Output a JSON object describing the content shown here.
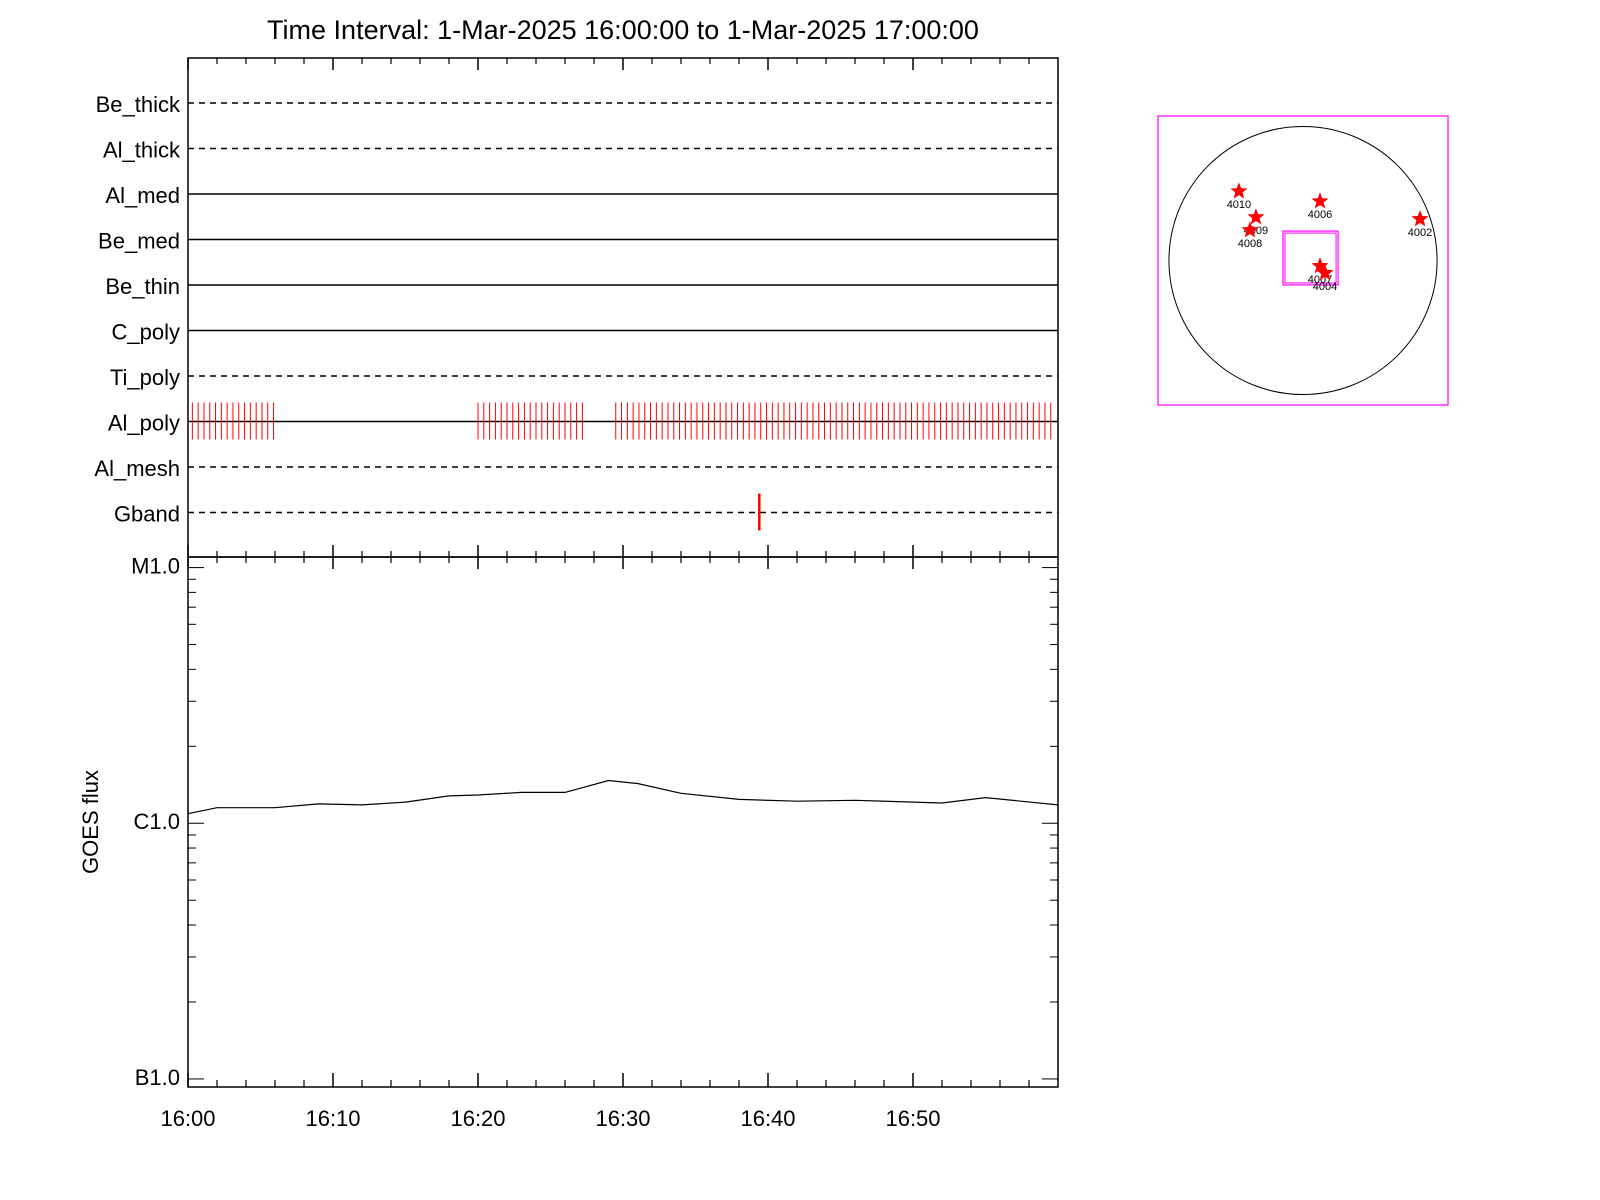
{
  "chart_data": [
    {
      "type": "event",
      "title": "Time Interval:  1-Mar-2025 16:00:00 to  1-Mar-2025 17:00:00",
      "categories": [
        "Be_thick",
        "Al_thick",
        "Al_med",
        "Be_med",
        "Be_thin",
        "C_poly",
        "Ti_poly",
        "Al_poly",
        "Al_mesh",
        "Gband"
      ],
      "line_styles": [
        "dashed",
        "dashed",
        "solid",
        "solid",
        "solid",
        "solid",
        "dashed",
        "solid",
        "dashed",
        "dashed"
      ],
      "xlim": [
        0,
        60
      ],
      "series": [
        {
          "name": "Al_poly",
          "color": "#ff0000",
          "x": [
            0.3,
            0.7,
            1.1,
            1.5,
            1.9,
            2.3,
            2.7,
            3.1,
            3.5,
            3.9,
            4.3,
            4.7,
            5.1,
            5.5,
            5.9,
            20.0,
            20.4,
            20.8,
            21.2,
            21.6,
            22.0,
            22.4,
            22.8,
            23.2,
            23.6,
            24.0,
            24.4,
            24.8,
            25.2,
            25.6,
            26.0,
            26.4,
            26.8,
            27.2,
            29.5,
            29.9,
            30.3,
            30.7,
            31.1,
            31.5,
            31.9,
            32.3,
            32.7,
            33.1,
            33.5,
            33.9,
            34.3,
            34.7,
            35.1,
            35.5,
            35.9,
            36.3,
            36.7,
            37.1,
            37.5,
            37.9,
            38.3,
            38.7,
            39.1,
            39.5,
            39.9,
            40.3,
            40.7,
            41.1,
            41.5,
            41.9,
            42.3,
            42.7,
            43.1,
            43.5,
            43.9,
            44.3,
            44.7,
            45.1,
            45.5,
            45.9,
            46.3,
            46.7,
            47.1,
            47.5,
            47.9,
            48.3,
            48.7,
            49.1,
            49.5,
            49.9,
            50.3,
            50.7,
            51.1,
            51.5,
            51.9,
            52.3,
            52.7,
            53.1,
            53.5,
            53.9,
            54.3,
            54.7,
            55.1,
            55.5,
            55.9,
            56.3,
            56.7,
            57.1,
            57.5,
            57.9,
            58.3,
            58.7,
            59.1,
            59.5
          ]
        },
        {
          "name": "Gband",
          "color": "#ff0000",
          "x": [
            39.4
          ]
        }
      ]
    },
    {
      "type": "line",
      "ylabel": "GOES flux",
      "log_scale": true,
      "color": "#000000",
      "x": [
        0,
        2,
        6,
        9,
        12,
        15,
        18,
        20,
        23,
        26,
        29,
        31,
        34,
        38,
        42,
        46,
        52,
        55,
        60
      ],
      "values": [
        1.09e-06,
        1.15e-06,
        1.15e-06,
        1.19e-06,
        1.18e-06,
        1.21e-06,
        1.28e-06,
        1.29e-06,
        1.32e-06,
        1.32e-06,
        1.47e-06,
        1.43e-06,
        1.31e-06,
        1.24e-06,
        1.22e-06,
        1.23e-06,
        1.2e-06,
        1.26e-06,
        1.18e-06
      ],
      "xlim": [
        0,
        60
      ],
      "xticks": [
        {
          "value": 0,
          "label": "16:00"
        },
        {
          "value": 10,
          "label": "16:10"
        },
        {
          "value": 20,
          "label": "16:20"
        },
        {
          "value": 30,
          "label": "16:30"
        },
        {
          "value": 40,
          "label": "16:40"
        },
        {
          "value": 50,
          "label": "16:50"
        }
      ],
      "minor_xticks": [
        2,
        4,
        6,
        8,
        12,
        14,
        16,
        18,
        22,
        24,
        26,
        28,
        32,
        34,
        36,
        38,
        42,
        44,
        46,
        48,
        52,
        54,
        56,
        58
      ],
      "ylim": [
        9.3e-08,
        1.1e-05
      ],
      "yticks": [
        {
          "value": 1e-05,
          "label": "M1.0"
        },
        {
          "value": 1e-06,
          "label": "C1.0"
        },
        {
          "value": 1e-07,
          "label": "B1.0"
        }
      ]
    },
    {
      "type": "scatter",
      "xlim": [
        -1100,
        1100
      ],
      "ylim": [
        -1100,
        1100
      ],
      "sun_radius": 1017,
      "fov": {
        "x": [
          -152,
          266
        ],
        "y": [
          -186,
          224
        ]
      },
      "box_color": "#ff00ff",
      "color": "#ff0000",
      "labels": [
        "4010",
        "4006",
        "4009",
        "4008",
        "4002",
        "4007",
        "4004"
      ],
      "x": [
        -486,
        129,
        -357,
        -402,
        888,
        129,
        167
      ],
      "values": [
        527,
        451,
        330,
        231,
        315,
        -42,
        -95
      ]
    }
  ]
}
